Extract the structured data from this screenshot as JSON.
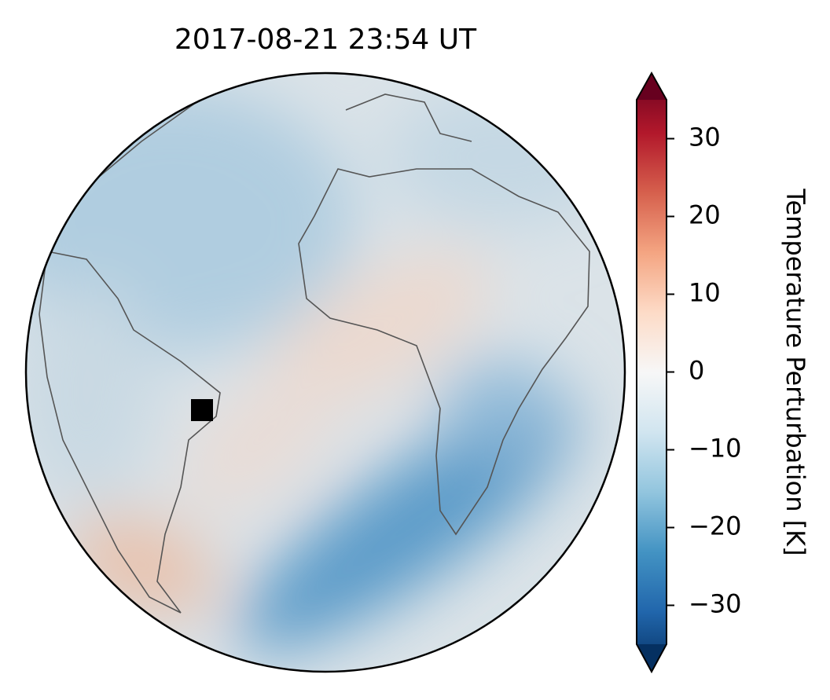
{
  "chart_data": {
    "type": "map",
    "title": "2017-08-21  23:54 UT",
    "colorbar_label": "Temperature Perturbation [K]",
    "clim": [
      -35,
      35
    ],
    "colorbar_ticks": [
      {
        "value": -30,
        "label": "−30"
      },
      {
        "value": -20,
        "label": "−20"
      },
      {
        "value": -10,
        "label": "−10"
      },
      0,
      10,
      20,
      30
    ],
    "colormap": [
      "#053061",
      "#2166ac",
      "#4393c3",
      "#92c5de",
      "#d1e5f0",
      "#f7f7f7",
      "#fddbc7",
      "#f4a582",
      "#d6604d",
      "#b2182b",
      "#67001f"
    ]
  }
}
